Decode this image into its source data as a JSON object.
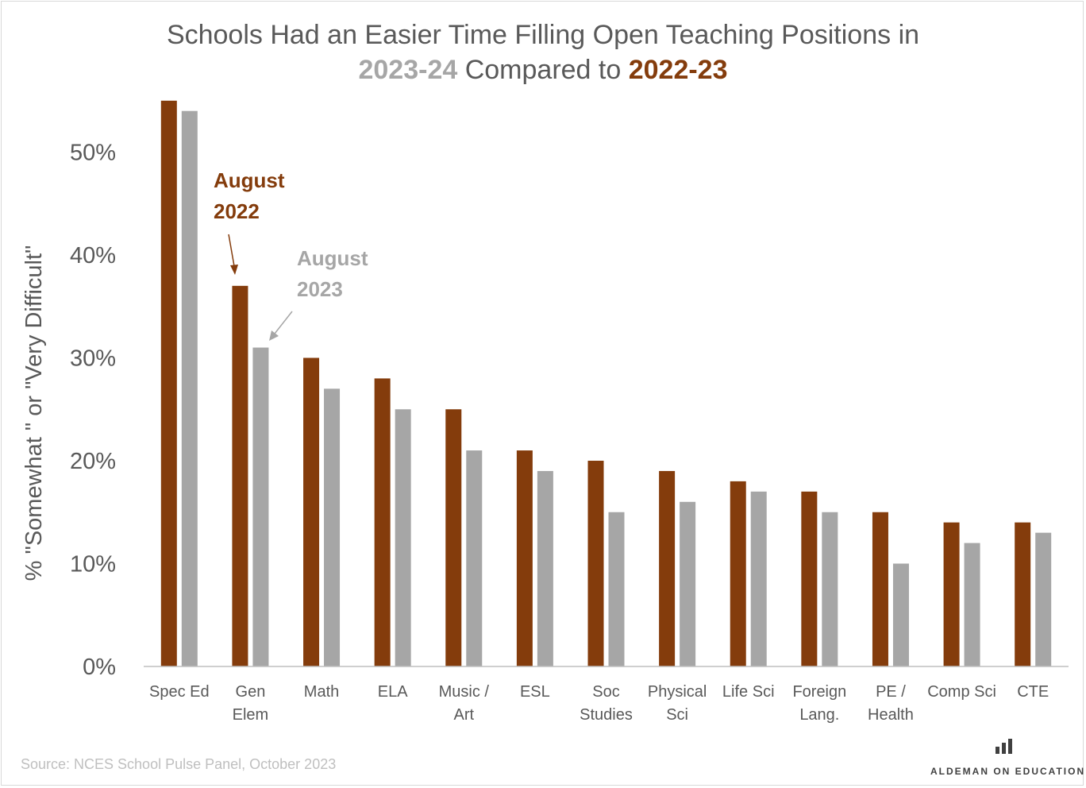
{
  "title": {
    "line1": "Schools Had an Easier Time Filling Open Teaching Positions in",
    "year_2023_24": "2023-24",
    "compared_to": " Compared to ",
    "year_2022_23": "2022-23"
  },
  "colors": {
    "series_2022": "#843c0c",
    "series_2023": "#a6a6a6",
    "axis_text": "#595959",
    "axis_line": "#bfbfbf"
  },
  "chart_data": {
    "type": "bar",
    "title": "Schools Had an Easier Time Filling Open Teaching Positions in 2023-24 Compared to 2022-23",
    "ylabel": "% \"Somewhat \" or \"Very Difficult\"",
    "xlabel": "",
    "ylim": [
      0,
      55
    ],
    "yticks": [
      0,
      10,
      20,
      30,
      40,
      50
    ],
    "ytick_labels": [
      "0%",
      "10%",
      "20%",
      "30%",
      "40%",
      "50%"
    ],
    "grid": false,
    "categories": [
      [
        "Spec Ed"
      ],
      [
        "Gen",
        "Elem"
      ],
      [
        "Math"
      ],
      [
        "ELA"
      ],
      [
        "Music /",
        "Art"
      ],
      [
        "ESL"
      ],
      [
        "Soc",
        "Studies"
      ],
      [
        "Physical",
        "Sci"
      ],
      [
        "Life Sci"
      ],
      [
        "Foreign",
        "Lang."
      ],
      [
        "PE /",
        "Health"
      ],
      [
        "Comp Sci"
      ],
      [
        "CTE"
      ]
    ],
    "series": [
      {
        "name": "August 2022",
        "values": [
          55,
          37,
          30,
          28,
          25,
          21,
          20,
          19,
          18,
          17,
          15,
          14,
          14
        ]
      },
      {
        "name": "August 2023",
        "values": [
          54,
          31,
          27,
          25,
          21,
          19,
          15,
          16,
          17,
          15,
          10,
          12,
          13
        ]
      }
    ],
    "annotations": [
      {
        "series": "August 2022",
        "lines": [
          "August",
          "2022"
        ]
      },
      {
        "series": "August 2023",
        "lines": [
          "August",
          "2023"
        ]
      }
    ]
  },
  "source": "Source: NCES School Pulse Panel, October 2023",
  "brand": "ALDEMAN ON EDUCATION"
}
